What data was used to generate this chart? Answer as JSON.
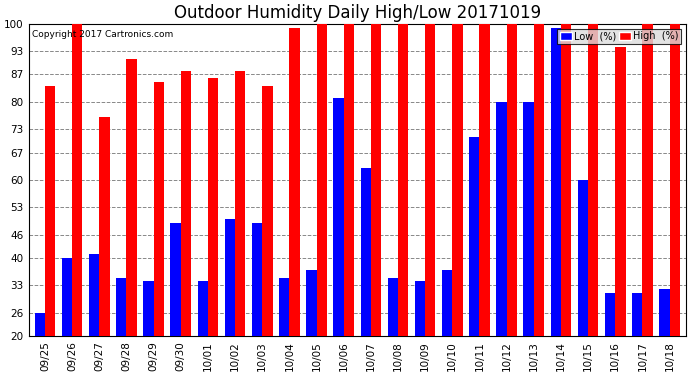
{
  "title": "Outdoor Humidity Daily High/Low 20171019",
  "copyright": "Copyright 2017 Cartronics.com",
  "dates": [
    "09/25",
    "09/26",
    "09/27",
    "09/28",
    "09/29",
    "09/30",
    "10/01",
    "10/02",
    "10/03",
    "10/04",
    "10/05",
    "10/06",
    "10/07",
    "10/08",
    "10/09",
    "10/10",
    "10/11",
    "10/12",
    "10/13",
    "10/14",
    "10/15",
    "10/16",
    "10/17",
    "10/18"
  ],
  "high": [
    84,
    100,
    76,
    91,
    85,
    88,
    86,
    88,
    84,
    99,
    100,
    100,
    100,
    100,
    100,
    100,
    100,
    100,
    100,
    100,
    100,
    94,
    100,
    100
  ],
  "low": [
    26,
    40,
    41,
    35,
    34,
    49,
    34,
    50,
    49,
    35,
    37,
    81,
    63,
    35,
    34,
    37,
    71,
    80,
    80,
    99,
    60,
    31,
    31,
    32
  ],
  "high_color": "#ff0000",
  "low_color": "#0000ff",
  "bg_color": "#ffffff",
  "grid_color": "#888888",
  "ymin": 20,
  "ymax": 100,
  "yticks": [
    20,
    26,
    33,
    40,
    46,
    53,
    60,
    67,
    73,
    80,
    87,
    93,
    100
  ],
  "bar_width": 0.38,
  "title_fontsize": 12,
  "tick_fontsize": 7.5,
  "legend_low_label": "Low  (%)",
  "legend_high_label": "High  (%)"
}
